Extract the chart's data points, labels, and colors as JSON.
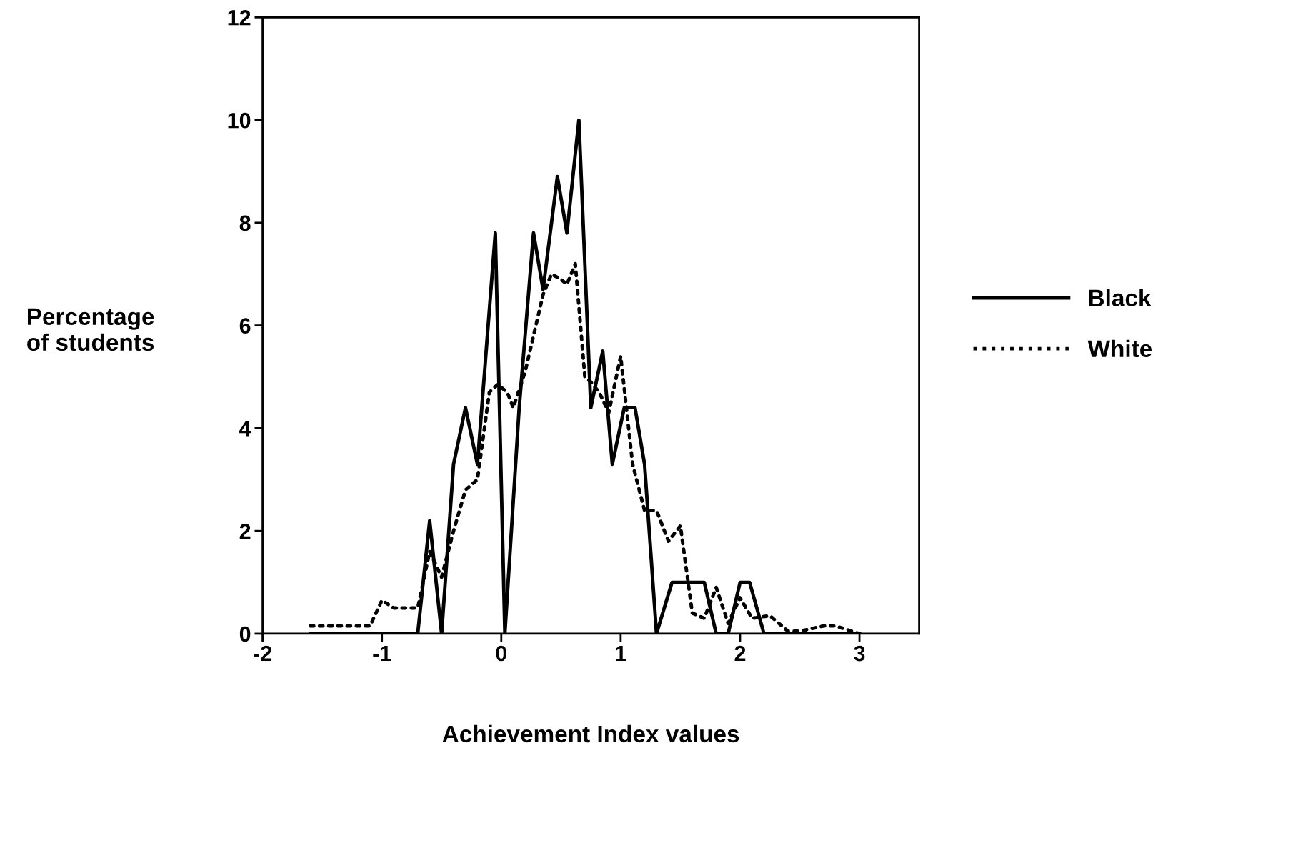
{
  "chart_data": {
    "type": "line",
    "xlabel": "Achievement Index values",
    "ylabel": "Percentage\nof students",
    "xlim": [
      -2,
      3.5
    ],
    "xticks": [
      -2,
      -1,
      0,
      1,
      2,
      3
    ],
    "ylim": [
      0,
      12
    ],
    "yticks": [
      0,
      2,
      4,
      6,
      8,
      10,
      12
    ],
    "grid": false,
    "legend": "right",
    "marker": "none",
    "series": [
      {
        "name": "Black",
        "color": "#000000",
        "line_style": "solid",
        "x": [
          -1.6,
          -0.7,
          -0.6,
          -0.5,
          -0.4,
          -0.3,
          -0.2,
          -0.05,
          0.03,
          0.15,
          0.27,
          0.35,
          0.47,
          0.55,
          0.65,
          0.75,
          0.85,
          0.93,
          1.03,
          1.12,
          1.2,
          1.3,
          1.43,
          1.7,
          1.8,
          1.9,
          2.0,
          2.08,
          2.2,
          3.0
        ],
        "values": [
          0,
          0,
          2.2,
          0,
          3.3,
          4.4,
          3.3,
          7.8,
          0,
          4.4,
          7.8,
          6.7,
          8.9,
          7.8,
          10,
          4.4,
          5.5,
          3.3,
          4.4,
          4.4,
          3.3,
          0,
          1.0,
          1.0,
          0,
          0,
          1.0,
          1.0,
          0,
          0
        ]
      },
      {
        "name": "White",
        "color": "#000000",
        "line_style": "dotted",
        "x": [
          -1.6,
          -1.1,
          -1.0,
          -0.9,
          -0.7,
          -0.6,
          -0.5,
          -0.4,
          -0.3,
          -0.2,
          -0.1,
          -0.03,
          0.05,
          0.1,
          0.2,
          0.35,
          0.42,
          0.5,
          0.55,
          0.62,
          0.7,
          0.75,
          0.82,
          0.9,
          1.0,
          1.1,
          1.2,
          1.3,
          1.4,
          1.5,
          1.6,
          1.7,
          1.8,
          1.9,
          2.0,
          2.1,
          2.25,
          2.4,
          2.5,
          2.7,
          2.8,
          3.0
        ],
        "values": [
          0.15,
          0.15,
          0.65,
          0.5,
          0.5,
          1.6,
          1.1,
          2.0,
          2.8,
          3.0,
          4.7,
          4.85,
          4.7,
          4.4,
          5.1,
          6.6,
          7.0,
          6.9,
          6.8,
          7.2,
          5.0,
          4.9,
          4.7,
          4.3,
          5.4,
          3.3,
          2.4,
          2.4,
          1.8,
          2.1,
          0.4,
          0.3,
          0.9,
          0.2,
          0.7,
          0.3,
          0.35,
          0.05,
          0.05,
          0.15,
          0.15,
          0.0
        ]
      }
    ]
  }
}
